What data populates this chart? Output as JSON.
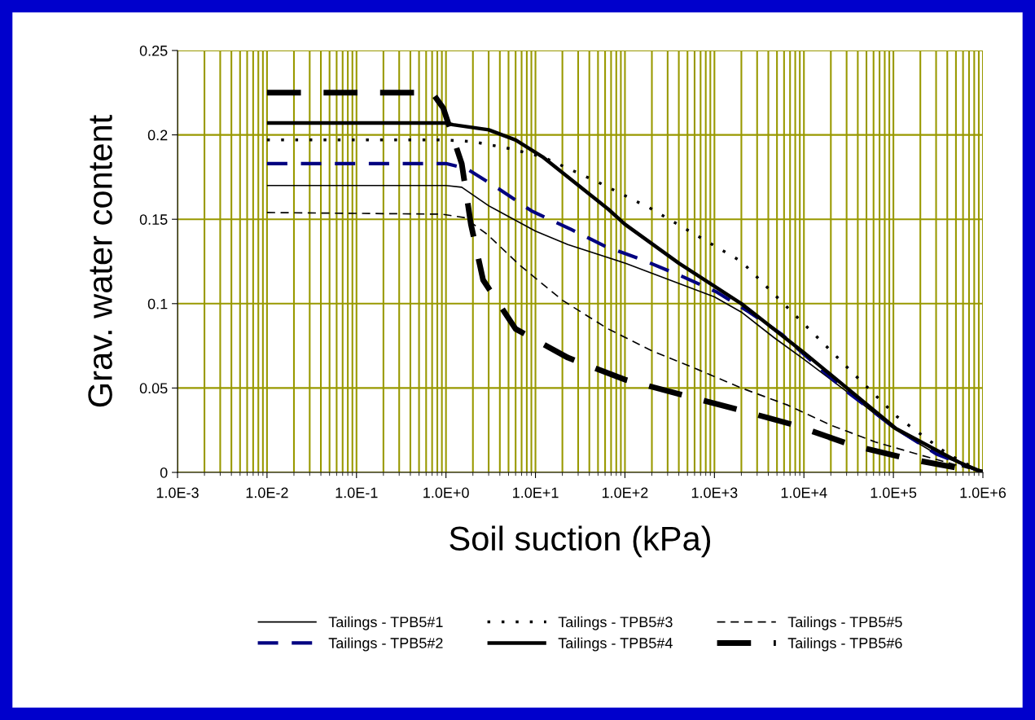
{
  "chart_data": {
    "type": "line",
    "xlabel": "Soil suction (kPa)",
    "ylabel": "Grav. water content",
    "log": "x",
    "xlim": [
      0.001,
      1000000
    ],
    "xticks": [
      {
        "value": 0.001,
        "label": "1.0E-3"
      },
      {
        "value": 0.01,
        "label": "1.0E-2"
      },
      {
        "value": 0.1,
        "label": "1.0E-1"
      },
      {
        "value": 1,
        "label": "1.0E+0"
      },
      {
        "value": 10,
        "label": "1.0E+1"
      },
      {
        "value": 100,
        "label": "1.0E+2"
      },
      {
        "value": 1000,
        "label": "1.0E+3"
      },
      {
        "value": 10000,
        "label": "1.0E+4"
      },
      {
        "value": 100000,
        "label": "1.0E+5"
      },
      {
        "value": 1000000,
        "label": "1.0E+6"
      }
    ],
    "ylim": [
      0,
      0.25
    ],
    "yticks": [
      0,
      0.05,
      0.1,
      0.15,
      0.2,
      0.25
    ],
    "grid": true,
    "legend": "bottom",
    "series": [
      {
        "name": "Tailings - TPB5#1",
        "color": "#000000",
        "line_style": "solid",
        "x": [
          0.01,
          1,
          1.5,
          3,
          10,
          23,
          100,
          200,
          1000,
          2000,
          4600,
          10000,
          30000,
          100000,
          300000,
          1000000
        ],
        "values": [
          0.17,
          0.17,
          0.169,
          0.158,
          0.143,
          0.135,
          0.124,
          0.118,
          0.104,
          0.095,
          0.08,
          0.067,
          0.048,
          0.026,
          0.011,
          0.0
        ]
      },
      {
        "name": "Tailings - TPB5#2",
        "color": "#000080",
        "line_style": "dashed",
        "x": [
          0.01,
          1,
          1.7,
          3.9,
          9,
          25,
          60,
          155,
          400,
          1050,
          2450,
          5600,
          10000,
          30000,
          100000,
          300000,
          1000000
        ],
        "values": [
          0.183,
          0.183,
          0.18,
          0.168,
          0.155,
          0.144,
          0.134,
          0.126,
          0.117,
          0.107,
          0.095,
          0.082,
          0.07,
          0.048,
          0.027,
          0.011,
          0.0
        ]
      },
      {
        "name": "Tailings - TPB5#3",
        "color": "#000000",
        "line_style": "dotted",
        "x": [
          0.01,
          1,
          2,
          5,
          12,
          50,
          200,
          2000,
          10000,
          40000,
          110000,
          400000,
          1000000
        ],
        "values": [
          0.197,
          0.197,
          0.196,
          0.192,
          0.187,
          0.172,
          0.156,
          0.125,
          0.088,
          0.056,
          0.033,
          0.011,
          0.0
        ]
      },
      {
        "name": "Tailings - TPB5#4",
        "color": "#000000",
        "line_style": "solid",
        "x": [
          0.01,
          1,
          1.2,
          3,
          6,
          12,
          65,
          100,
          400,
          2000,
          10000,
          107000,
          540000,
          1000000
        ],
        "values": [
          0.207,
          0.207,
          0.206,
          0.203,
          0.197,
          0.187,
          0.156,
          0.147,
          0.124,
          0.1,
          0.071,
          0.026,
          0.006,
          0.0
        ]
      },
      {
        "name": "Tailings - TPB5#5",
        "color": "#000000",
        "line_style": "dashed",
        "x": [
          0.01,
          0.9,
          1.6,
          2.9,
          6.6,
          20,
          65,
          200,
          650,
          2000,
          6500,
          20000,
          63000,
          210000,
          1000000
        ],
        "values": [
          0.154,
          0.153,
          0.151,
          0.141,
          0.123,
          0.102,
          0.085,
          0.072,
          0.061,
          0.05,
          0.04,
          0.028,
          0.018,
          0.01,
          0.0
        ]
      },
      {
        "name": "Tailings - TPB5#6",
        "color": "#000000",
        "line_style": "dashed",
        "x": [
          0.01,
          0.7,
          0.93,
          1.5,
          1.9,
          2.6,
          6,
          23,
          100,
          430,
          1900,
          7900,
          35000,
          150000,
          600000,
          1000000
        ],
        "values": [
          0.225,
          0.225,
          0.216,
          0.183,
          0.147,
          0.114,
          0.085,
          0.068,
          0.055,
          0.046,
          0.037,
          0.028,
          0.016,
          0.008,
          0.002,
          0.0
        ]
      }
    ]
  }
}
